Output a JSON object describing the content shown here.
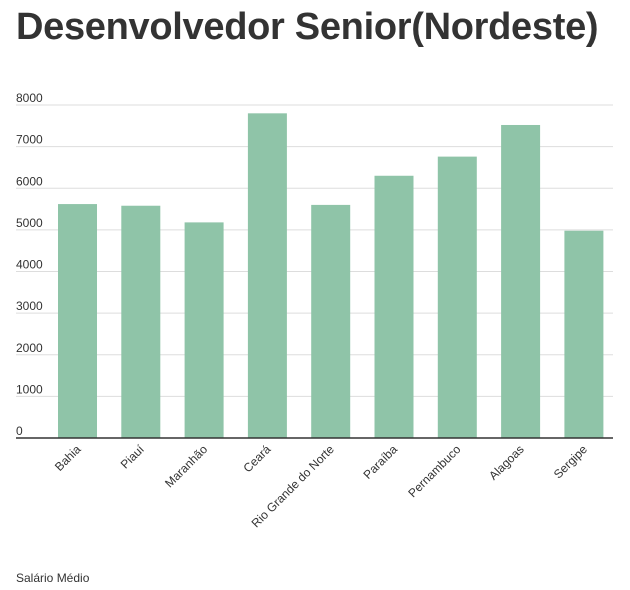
{
  "chart_data": {
    "type": "bar",
    "title": "Desenvolvedor Senior(Nordeste)",
    "categories": [
      "Bahia",
      "Piauí",
      "Maranhão",
      "Ceará",
      "Rio Grande do Norte",
      "Paraíba",
      "Pernambuco",
      "Alagoas",
      "Sergipe"
    ],
    "values": [
      5620,
      5580,
      5180,
      7800,
      5600,
      6300,
      6760,
      7520,
      4980
    ],
    "yticks": [
      0,
      1000,
      2000,
      3000,
      4000,
      5000,
      6000,
      7000,
      8000
    ],
    "ylim": [
      0,
      8000
    ],
    "bar_color": "#8fc4a8",
    "grid": true
  },
  "footer": {
    "label": "Salário Médio"
  }
}
